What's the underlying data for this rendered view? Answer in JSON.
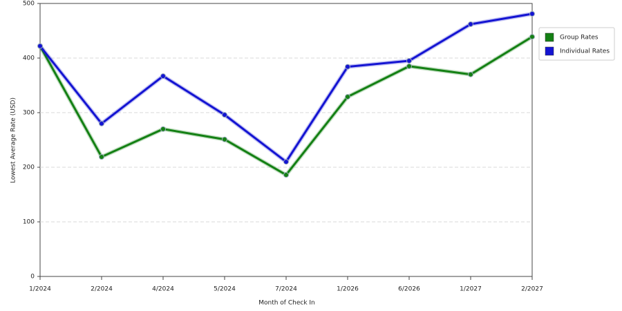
{
  "chart_data": {
    "type": "line",
    "x_label": "Month of Check In",
    "y_label": "Lowest Average Rate (USD)",
    "categories": [
      "1/2024",
      "2/2024",
      "4/2024",
      "5/2024",
      "7/2024",
      "1/2026",
      "6/2026",
      "1/2027",
      "2/2027"
    ],
    "series": [
      {
        "name": "Group Rates",
        "color": "#148014",
        "values": [
          422,
          219,
          270,
          251,
          186,
          329,
          385,
          370,
          439
        ]
      },
      {
        "name": "Individual Rates",
        "color": "#1414d2",
        "values": [
          422,
          280,
          367,
          296,
          210,
          384,
          395,
          462,
          481
        ]
      }
    ],
    "ylim": [
      0,
      500
    ],
    "yticks": [
      0,
      100,
      200,
      300,
      400,
      500
    ],
    "grid": true,
    "legend": "right"
  }
}
